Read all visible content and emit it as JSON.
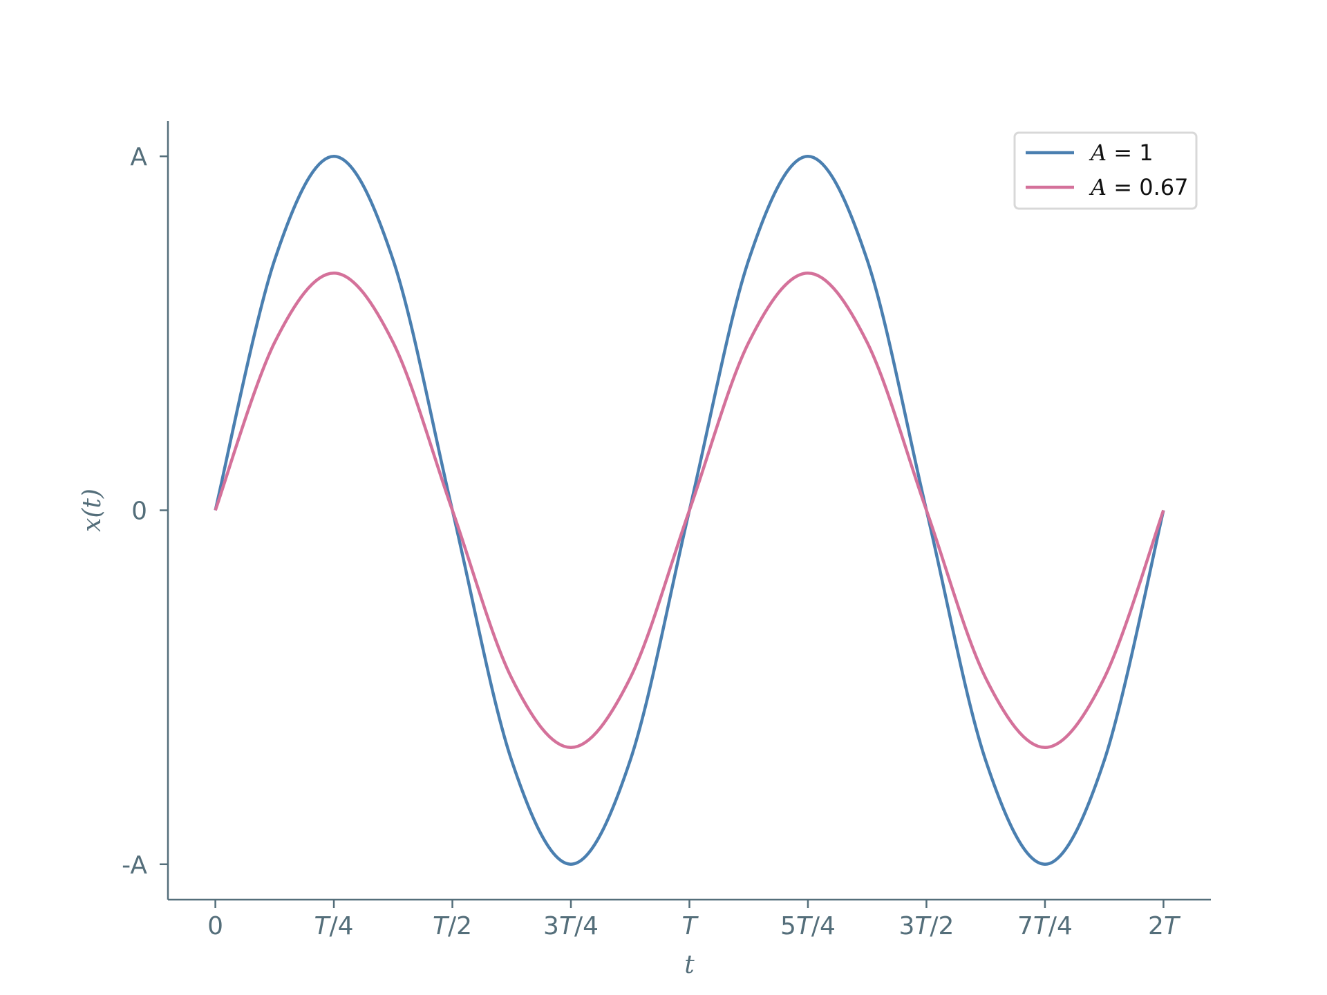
{
  "chart_data": {
    "type": "line",
    "title": "",
    "xlabel": "t",
    "ylabel": "x(t)",
    "x_unit": "periods T",
    "xlim": [
      -0.1,
      2.1
    ],
    "ylim": [
      -1.1,
      1.1
    ],
    "x_ticks": [
      {
        "value": 0,
        "label": "0"
      },
      {
        "value": 0.25,
        "label": "T/4"
      },
      {
        "value": 0.5,
        "label": "T/2"
      },
      {
        "value": 0.75,
        "label": "3T/4"
      },
      {
        "value": 1.0,
        "label": "T"
      },
      {
        "value": 1.25,
        "label": "5T/4"
      },
      {
        "value": 1.5,
        "label": "3T/2"
      },
      {
        "value": 1.75,
        "label": "7T/4"
      },
      {
        "value": 2.0,
        "label": "2T"
      }
    ],
    "y_ticks": [
      {
        "value": 1,
        "label": "A"
      },
      {
        "value": 0,
        "label": "0"
      },
      {
        "value": -1,
        "label": "-A"
      }
    ],
    "grid": false,
    "legend_position": "top-right",
    "x": [
      0,
      0.125,
      0.25,
      0.375,
      0.5,
      0.625,
      0.75,
      0.875,
      1.0,
      1.125,
      1.25,
      1.375,
      1.5,
      1.625,
      1.75,
      1.875,
      2.0
    ],
    "series": [
      {
        "name": "A = 1",
        "legend_var": "A",
        "legend_value": "1",
        "color": "#4a7fb0",
        "values": [
          0,
          0.707,
          1,
          0.707,
          0,
          -0.707,
          -1,
          -0.707,
          0,
          0.707,
          1,
          0.707,
          0,
          -0.707,
          -1,
          -0.707,
          0
        ]
      },
      {
        "name": "A = 0.67",
        "legend_var": "A",
        "legend_value": "0.67",
        "color": "#d4719a",
        "values": [
          0,
          0.474,
          0.67,
          0.474,
          0,
          -0.474,
          -0.67,
          -0.474,
          0,
          0.474,
          0.67,
          0.474,
          0,
          -0.474,
          -0.67,
          -0.474,
          0
        ]
      }
    ]
  }
}
